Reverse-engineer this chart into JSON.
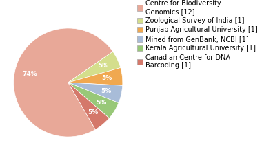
{
  "labels": [
    "Centre for Biodiversity\nGenomics [12]",
    "Zoological Survey of India [1]",
    "Punjab Agricultural University [1]",
    "Mined from GenBank, NCBI [1]",
    "Kerala Agricultural University [1]",
    "Canadian Centre for DNA\nBarcoding [1]"
  ],
  "values": [
    70,
    5,
    5,
    5,
    5,
    5
  ],
  "colors": [
    "#e8a898",
    "#d4de8c",
    "#f0a850",
    "#a8bcd8",
    "#98c878",
    "#d4786a"
  ],
  "startangle": -60,
  "background_color": "#ffffff",
  "fontsize": 7.0,
  "pct_fontsize": 6.5
}
